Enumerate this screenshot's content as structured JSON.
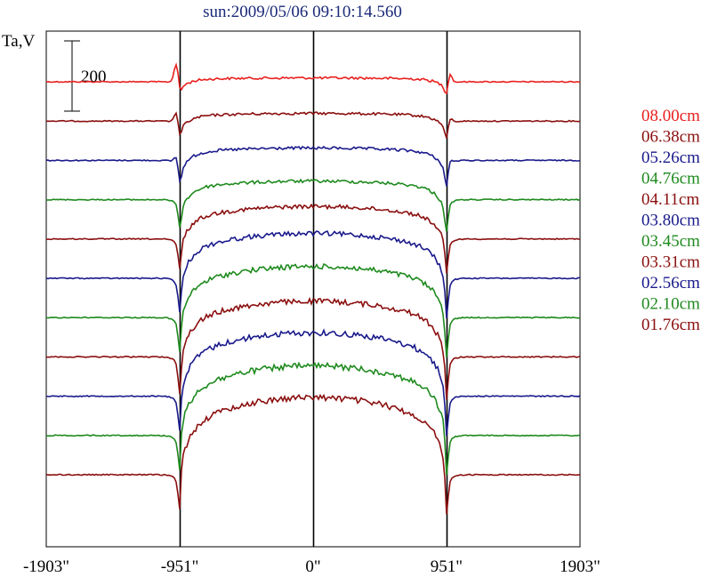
{
  "chart_data": {
    "type": "line",
    "title": "sun:2009/05/06 09:10:14.560",
    "ylabel": "Ta,V",
    "xlabel": "",
    "x_ticks": [
      "-1903\"",
      "-951\"",
      "0\"",
      "951\"",
      "1903\""
    ],
    "x_tick_values": [
      -1903,
      -951,
      0,
      951,
      1903
    ],
    "xlim": [
      -1903,
      1903
    ],
    "vertical_lines_at": [
      -951,
      0,
      951
    ],
    "scale_bar": {
      "label": "200",
      "value": 200
    },
    "grid": false,
    "legend_position": "right",
    "series": [
      {
        "name": "08.00cm",
        "color": "#e8201e",
        "baseline": 0,
        "disk_height": 5,
        "limb_dip": 10,
        "limb_bump": 22
      },
      {
        "name": "06.38cm",
        "color": "#8b0f0f",
        "baseline": 1,
        "disk_height": 10,
        "limb_dip": 14,
        "limb_bump": 12
      },
      {
        "name": "05.26cm",
        "color": "#1a1a8c",
        "baseline": 2,
        "disk_height": 16,
        "limb_dip": 20,
        "limb_bump": 8
      },
      {
        "name": "04.76cm",
        "color": "#1e8a1e",
        "baseline": 3,
        "disk_height": 24,
        "limb_dip": 24,
        "limb_bump": 0
      },
      {
        "name": "04.11cm",
        "color": "#8b0f0f",
        "baseline": 4,
        "disk_height": 42,
        "limb_dip": 26,
        "limb_bump": 0
      },
      {
        "name": "03.80cm",
        "color": "#1a1a8c",
        "baseline": 5,
        "disk_height": 58,
        "limb_dip": 30,
        "limb_bump": 0
      },
      {
        "name": "03.45cm",
        "color": "#1e8a1e",
        "baseline": 6,
        "disk_height": 66,
        "limb_dip": 30,
        "limb_bump": 0
      },
      {
        "name": "03.31cm",
        "color": "#8b0f0f",
        "baseline": 7,
        "disk_height": 72,
        "limb_dip": 32,
        "limb_bump": 0
      },
      {
        "name": "02.56cm",
        "color": "#1a1a8c",
        "baseline": 8,
        "disk_height": 82,
        "limb_dip": 30,
        "limb_bump": 0
      },
      {
        "name": "02.10cm",
        "color": "#1e8a1e",
        "baseline": 9,
        "disk_height": 90,
        "limb_dip": 30,
        "limb_bump": 0
      },
      {
        "name": "01.76cm",
        "color": "#8b0f0f",
        "baseline": 10,
        "disk_height": 100,
        "limb_dip": 30,
        "limb_bump": 0
      }
    ]
  }
}
